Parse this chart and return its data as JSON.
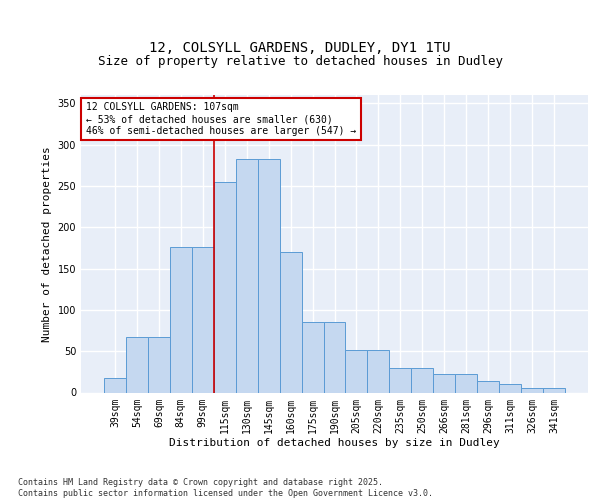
{
  "title": "12, COLSYLL GARDENS, DUDLEY, DY1 1TU",
  "subtitle": "Size of property relative to detached houses in Dudley",
  "xlabel": "Distribution of detached houses by size in Dudley",
  "ylabel": "Number of detached properties",
  "categories": [
    "39sqm",
    "54sqm",
    "69sqm",
    "84sqm",
    "99sqm",
    "115sqm",
    "130sqm",
    "145sqm",
    "160sqm",
    "175sqm",
    "190sqm",
    "205sqm",
    "220sqm",
    "235sqm",
    "250sqm",
    "266sqm",
    "281sqm",
    "296sqm",
    "311sqm",
    "326sqm",
    "341sqm"
  ],
  "bar_values": [
    18,
    67,
    67,
    176,
    176,
    255,
    283,
    283,
    170,
    85,
    85,
    52,
    52,
    30,
    30,
    22,
    22,
    14,
    10,
    5,
    5
  ],
  "bar_color": "#c5d8f0",
  "bar_edge_color": "#5b9bd5",
  "property_line_x": 5,
  "property_line_color": "#cc0000",
  "annotation_text": "12 COLSYLL GARDENS: 107sqm\n← 53% of detached houses are smaller (630)\n46% of semi-detached houses are larger (547) →",
  "annotation_box_color": "#ffffff",
  "annotation_box_edge_color": "#cc0000",
  "ylim": [
    0,
    360
  ],
  "yticks": [
    0,
    50,
    100,
    150,
    200,
    250,
    300,
    350
  ],
  "background_color": "#e8eef8",
  "grid_color": "#d0d8e8",
  "footer": "Contains HM Land Registry data © Crown copyright and database right 2025.\nContains public sector information licensed under the Open Government Licence v3.0.",
  "title_fontsize": 10,
  "subtitle_fontsize": 9,
  "axis_label_fontsize": 8,
  "tick_fontsize": 7,
  "footer_fontsize": 6,
  "ann_fontsize": 7
}
